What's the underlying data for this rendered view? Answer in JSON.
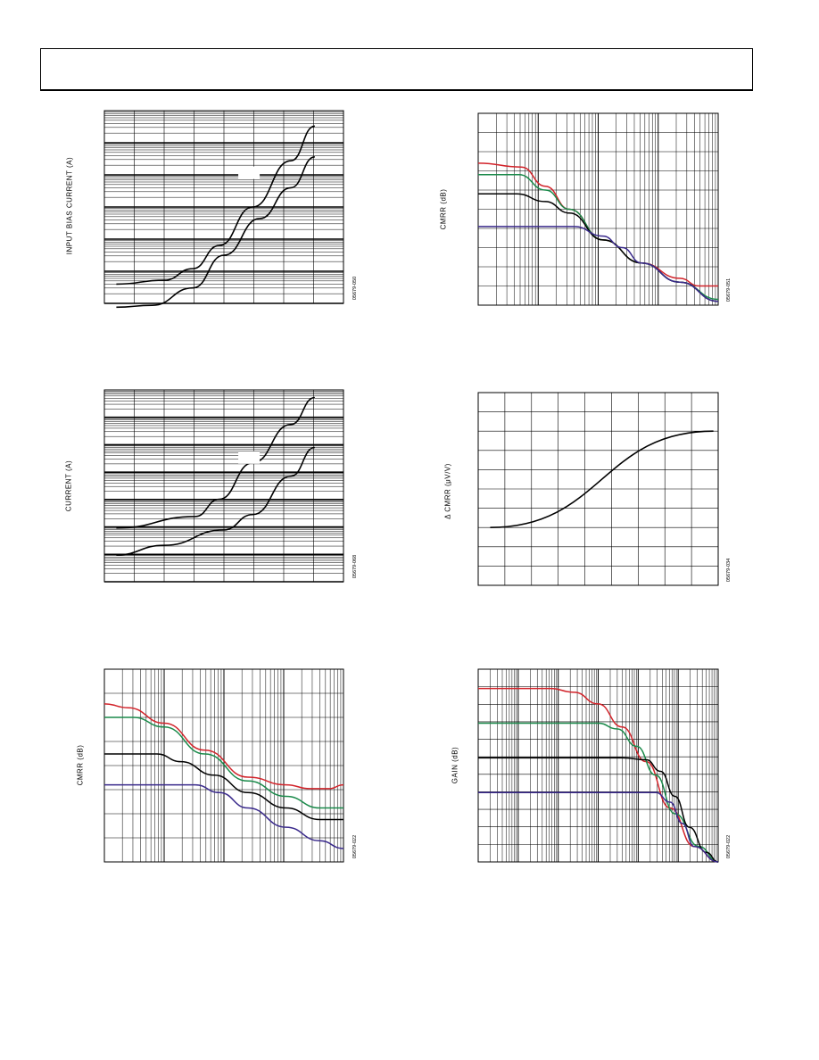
{
  "colors": {
    "red": "#d2232a",
    "green": "#1a8a4a",
    "black": "#000000",
    "purple": "#3a2a8c"
  },
  "chart_data": [
    {
      "id": "fig-bias-temp",
      "type": "line",
      "ylabel": "INPUT BIAS CURRENT (A)",
      "fignum": "05679-050",
      "y_log": true,
      "x_gridlines": 8,
      "y_decades": 6,
      "series": [
        {
          "color": "black",
          "points": [
            [
              0.05,
              0.1
            ],
            [
              0.25,
              0.12
            ],
            [
              0.37,
              0.18
            ],
            [
              0.48,
              0.3
            ],
            [
              0.62,
              0.5
            ],
            [
              0.78,
              0.74
            ],
            [
              0.88,
              0.92
            ]
          ]
        },
        {
          "color": "black",
          "points": [
            [
              0.05,
              -0.02
            ],
            [
              0.2,
              -0.01
            ],
            [
              0.37,
              0.08
            ],
            [
              0.5,
              0.25
            ],
            [
              0.65,
              0.44
            ],
            [
              0.78,
              0.6
            ],
            [
              0.88,
              0.76
            ]
          ]
        }
      ]
    },
    {
      "id": "fig-cmrr-freq",
      "type": "line",
      "ylabel": "CMRR (dB)",
      "fignum": "05679-051",
      "x_decades": 4,
      "y_gridlines": 10,
      "series": [
        {
          "color": "red",
          "points": [
            [
              0.0,
              0.74
            ],
            [
              0.18,
              0.72
            ],
            [
              0.28,
              0.62
            ],
            [
              0.38,
              0.5
            ],
            [
              0.52,
              0.34
            ],
            [
              0.68,
              0.22
            ],
            [
              0.84,
              0.14
            ],
            [
              0.92,
              0.1
            ],
            [
              1.0,
              0.1
            ]
          ]
        },
        {
          "color": "green",
          "points": [
            [
              0.0,
              0.68
            ],
            [
              0.17,
              0.68
            ],
            [
              0.28,
              0.6
            ],
            [
              0.38,
              0.5
            ],
            [
              0.52,
              0.34
            ],
            [
              0.68,
              0.22
            ],
            [
              0.84,
              0.12
            ],
            [
              1.0,
              0.03
            ]
          ]
        },
        {
          "color": "black",
          "points": [
            [
              0.0,
              0.58
            ],
            [
              0.16,
              0.58
            ],
            [
              0.28,
              0.54
            ],
            [
              0.38,
              0.48
            ],
            [
              0.52,
              0.34
            ],
            [
              0.68,
              0.22
            ],
            [
              0.84,
              0.12
            ],
            [
              1.0,
              0.02
            ]
          ]
        },
        {
          "color": "purple",
          "points": [
            [
              0.0,
              0.41
            ],
            [
              0.4,
              0.41
            ],
            [
              0.52,
              0.36
            ],
            [
              0.6,
              0.3
            ],
            [
              0.68,
              0.22
            ],
            [
              0.84,
              0.12
            ],
            [
              1.0,
              0.02
            ]
          ]
        }
      ]
    },
    {
      "id": "fig-current-temp",
      "type": "line",
      "ylabel": "CURRENT (A)",
      "fignum": "05679-068",
      "y_log": true,
      "x_gridlines": 8,
      "y_decades": 7,
      "series": [
        {
          "color": "black",
          "points": [
            [
              0.05,
              0.28
            ],
            [
              0.38,
              0.34
            ],
            [
              0.48,
              0.43
            ],
            [
              0.62,
              0.62
            ],
            [
              0.78,
              0.82
            ],
            [
              0.88,
              0.96
            ]
          ]
        },
        {
          "color": "black",
          "points": [
            [
              0.05,
              0.14
            ],
            [
              0.25,
              0.19
            ],
            [
              0.5,
              0.27
            ],
            [
              0.62,
              0.35
            ],
            [
              0.78,
              0.55
            ],
            [
              0.88,
              0.7
            ]
          ]
        }
      ]
    },
    {
      "id": "fig-delta-cmrr",
      "type": "line",
      "ylabel": "Δ CMRR (μV/V)",
      "fignum": "05679-034",
      "x_gridlines": 9,
      "y_gridlines": 10,
      "series": [
        {
          "color": "black",
          "points": [
            [
              0.05,
              0.3
            ],
            [
              0.98,
              0.8
            ]
          ]
        }
      ]
    },
    {
      "id": "fig-cmrr-freq-2",
      "type": "line",
      "ylabel": "CMRR (dB)",
      "fignum": "05679-022",
      "x_decades": 4,
      "y_gridlines": 8,
      "series": [
        {
          "color": "red",
          "points": [
            [
              0.0,
              0.82
            ],
            [
              0.1,
              0.8
            ],
            [
              0.25,
              0.72
            ],
            [
              0.42,
              0.58
            ],
            [
              0.6,
              0.44
            ],
            [
              0.76,
              0.4
            ],
            [
              0.86,
              0.38
            ],
            [
              0.94,
              0.38
            ],
            [
              1.0,
              0.4
            ]
          ]
        },
        {
          "color": "green",
          "points": [
            [
              0.0,
              0.75
            ],
            [
              0.12,
              0.75
            ],
            [
              0.25,
              0.7
            ],
            [
              0.42,
              0.56
            ],
            [
              0.6,
              0.42
            ],
            [
              0.76,
              0.34
            ],
            [
              0.9,
              0.28
            ],
            [
              1.0,
              0.28
            ]
          ]
        },
        {
          "color": "black",
          "points": [
            [
              0.0,
              0.56
            ],
            [
              0.22,
              0.56
            ],
            [
              0.32,
              0.52
            ],
            [
              0.46,
              0.45
            ],
            [
              0.6,
              0.36
            ],
            [
              0.76,
              0.28
            ],
            [
              0.9,
              0.22
            ],
            [
              1.0,
              0.22
            ]
          ]
        },
        {
          "color": "purple",
          "points": [
            [
              0.0,
              0.4
            ],
            [
              0.38,
              0.4
            ],
            [
              0.48,
              0.36
            ],
            [
              0.6,
              0.28
            ],
            [
              0.76,
              0.18
            ],
            [
              0.9,
              0.11
            ],
            [
              1.0,
              0.07
            ]
          ]
        }
      ]
    },
    {
      "id": "fig-gain-freq",
      "type": "line",
      "ylabel": "GAIN (dB)",
      "fignum": "05679-022",
      "x_decades": 6,
      "y_gridlines": 11,
      "series": [
        {
          "color": "red",
          "points": [
            [
              0.0,
              0.9
            ],
            [
              0.3,
              0.9
            ],
            [
              0.4,
              0.88
            ],
            [
              0.5,
              0.82
            ],
            [
              0.6,
              0.7
            ],
            [
              0.7,
              0.52
            ],
            [
              0.8,
              0.28
            ],
            [
              0.9,
              0.08
            ],
            [
              1.0,
              0.0
            ]
          ]
        },
        {
          "color": "green",
          "points": [
            [
              0.0,
              0.72
            ],
            [
              0.5,
              0.72
            ],
            [
              0.58,
              0.69
            ],
            [
              0.66,
              0.6
            ],
            [
              0.74,
              0.45
            ],
            [
              0.82,
              0.25
            ],
            [
              0.92,
              0.08
            ],
            [
              1.0,
              0.0
            ]
          ]
        },
        {
          "color": "black",
          "points": [
            [
              0.0,
              0.54
            ],
            [
              0.6,
              0.54
            ],
            [
              0.7,
              0.53
            ],
            [
              0.76,
              0.47
            ],
            [
              0.82,
              0.34
            ],
            [
              0.88,
              0.18
            ],
            [
              0.95,
              0.05
            ],
            [
              1.0,
              0.0
            ]
          ]
        },
        {
          "color": "purple",
          "points": [
            [
              0.0,
              0.36
            ],
            [
              0.74,
              0.36
            ],
            [
              0.8,
              0.31
            ],
            [
              0.85,
              0.2
            ],
            [
              0.9,
              0.08
            ],
            [
              1.0,
              0.0
            ]
          ]
        }
      ]
    }
  ]
}
